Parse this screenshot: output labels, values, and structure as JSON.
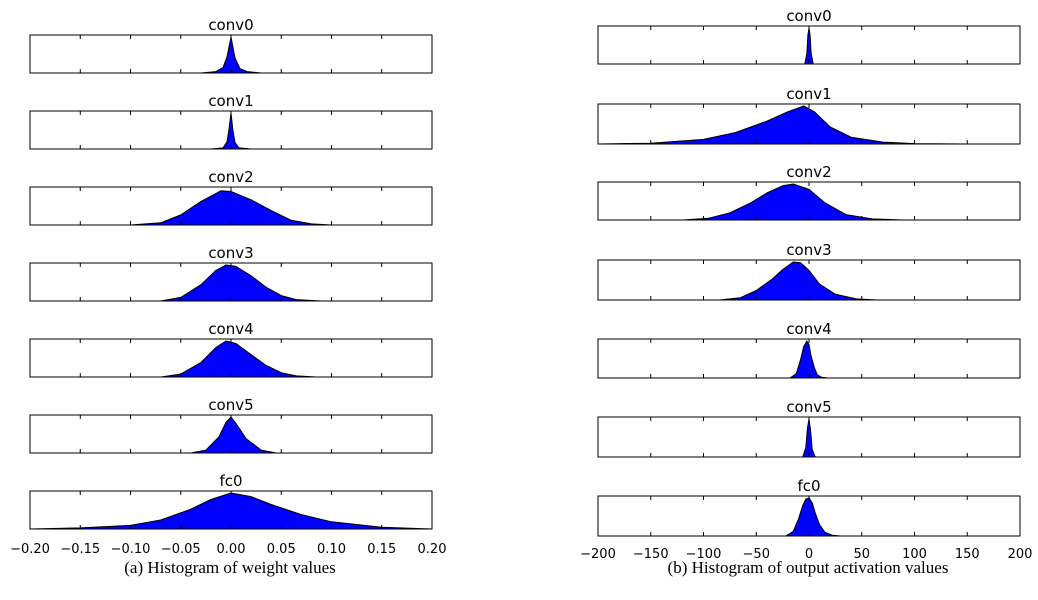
{
  "chart_data": [
    {
      "type": "area",
      "caption": "(a) Histogram of weight values",
      "xlim": [
        -0.2,
        0.2
      ],
      "xticks": [
        -0.2,
        -0.15,
        -0.1,
        -0.05,
        0.0,
        0.05,
        0.1,
        0.15,
        0.2
      ],
      "xtick_labels": [
        "−0.20",
        "−0.15",
        "−0.10",
        "−0.05",
        "0.00",
        "0.05",
        "0.10",
        "0.15",
        "0.20"
      ],
      "grid": false,
      "fill_color": "#0000ff",
      "panels": [
        {
          "title": "conv0",
          "x": [
            -0.03,
            -0.015,
            -0.008,
            -0.004,
            0.0,
            0.004,
            0.009,
            0.016,
            0.03
          ],
          "y": [
            0.0,
            0.04,
            0.15,
            0.45,
            1.0,
            0.42,
            0.12,
            0.04,
            0.0
          ]
        },
        {
          "title": "conv1",
          "x": [
            -0.02,
            -0.008,
            -0.004,
            -0.002,
            0.0,
            0.002,
            0.004,
            0.008,
            0.02
          ],
          "y": [
            0.0,
            0.03,
            0.2,
            0.55,
            1.0,
            0.5,
            0.18,
            0.03,
            0.0
          ]
        },
        {
          "title": "conv2",
          "x": [
            -0.1,
            -0.07,
            -0.05,
            -0.03,
            -0.01,
            0.0,
            0.02,
            0.04,
            0.06,
            0.08,
            0.1
          ],
          "y": [
            0.0,
            0.06,
            0.28,
            0.65,
            0.95,
            0.93,
            0.7,
            0.4,
            0.13,
            0.03,
            0.0
          ]
        },
        {
          "title": "conv3",
          "x": [
            -0.07,
            -0.05,
            -0.03,
            -0.015,
            -0.005,
            0.005,
            0.02,
            0.035,
            0.05,
            0.065,
            0.09
          ],
          "y": [
            0.0,
            0.1,
            0.45,
            0.85,
            1.0,
            0.96,
            0.7,
            0.38,
            0.15,
            0.04,
            0.0
          ]
        },
        {
          "title": "conv4",
          "x": [
            -0.07,
            -0.05,
            -0.03,
            -0.015,
            -0.005,
            0.005,
            0.02,
            0.035,
            0.05,
            0.065,
            0.085
          ],
          "y": [
            0.0,
            0.08,
            0.4,
            0.82,
            1.0,
            0.93,
            0.62,
            0.32,
            0.12,
            0.03,
            0.0
          ]
        },
        {
          "title": "conv5",
          "x": [
            -0.04,
            -0.025,
            -0.012,
            -0.005,
            0.0,
            0.005,
            0.015,
            0.03,
            0.045
          ],
          "y": [
            0.0,
            0.08,
            0.45,
            0.85,
            1.0,
            0.82,
            0.4,
            0.08,
            0.0
          ]
        },
        {
          "title": "fc0",
          "x": [
            -0.2,
            -0.15,
            -0.1,
            -0.07,
            -0.04,
            -0.02,
            0.0,
            0.02,
            0.04,
            0.07,
            0.1,
            0.15,
            0.2
          ],
          "y": [
            0.0,
            0.03,
            0.1,
            0.25,
            0.55,
            0.82,
            1.0,
            0.9,
            0.68,
            0.4,
            0.2,
            0.05,
            0.0
          ]
        }
      ]
    },
    {
      "type": "area",
      "caption": "(b) Histogram of output activation values",
      "xlim": [
        -200,
        200
      ],
      "xticks": [
        -200,
        -150,
        -100,
        -50,
        0,
        50,
        100,
        150,
        200
      ],
      "xtick_labels": [
        "−200",
        "−150",
        "−100",
        "−50",
        "0",
        "50",
        "100",
        "150",
        "200"
      ],
      "grid": false,
      "fill_color": "#0000ff",
      "panels": [
        {
          "title": "conv0",
          "x": [
            -4,
            -2,
            -1,
            0,
            1,
            2,
            4
          ],
          "y": [
            0.0,
            0.3,
            0.8,
            1.0,
            0.8,
            0.3,
            0.0
          ]
        },
        {
          "title": "conv1",
          "x": [
            -200,
            -150,
            -100,
            -70,
            -40,
            -20,
            -5,
            5,
            20,
            40,
            70,
            100,
            150,
            200
          ],
          "y": [
            0.0,
            0.02,
            0.12,
            0.3,
            0.6,
            0.85,
            1.0,
            0.85,
            0.45,
            0.18,
            0.05,
            0.01,
            0.0,
            0.0
          ]
        },
        {
          "title": "conv2",
          "x": [
            -120,
            -95,
            -75,
            -55,
            -40,
            -25,
            -15,
            0,
            15,
            35,
            60,
            90
          ],
          "y": [
            0.0,
            0.05,
            0.2,
            0.48,
            0.75,
            0.95,
            1.0,
            0.85,
            0.48,
            0.15,
            0.03,
            0.0
          ]
        },
        {
          "title": "conv3",
          "x": [
            -85,
            -65,
            -50,
            -35,
            -25,
            -15,
            -8,
            0,
            10,
            25,
            45,
            65
          ],
          "y": [
            0.0,
            0.06,
            0.25,
            0.55,
            0.8,
            1.0,
            0.98,
            0.78,
            0.42,
            0.15,
            0.03,
            0.0
          ]
        },
        {
          "title": "conv4",
          "x": [
            -18,
            -12,
            -8,
            -5,
            -2,
            0,
            2,
            5,
            8,
            12,
            18
          ],
          "y": [
            0.0,
            0.12,
            0.5,
            0.85,
            1.0,
            0.9,
            0.6,
            0.28,
            0.08,
            0.02,
            0.0
          ]
        },
        {
          "title": "conv5",
          "x": [
            -6,
            -3,
            -1.5,
            0,
            1.5,
            3,
            6
          ],
          "y": [
            0.0,
            0.25,
            0.75,
            1.0,
            0.7,
            0.2,
            0.0
          ]
        },
        {
          "title": "fc0",
          "x": [
            -22,
            -15,
            -10,
            -6,
            -3,
            0,
            3,
            6,
            10,
            15,
            22,
            30
          ],
          "y": [
            0.0,
            0.12,
            0.45,
            0.8,
            0.97,
            1.0,
            0.88,
            0.6,
            0.3,
            0.1,
            0.02,
            0.0
          ]
        }
      ]
    }
  ]
}
